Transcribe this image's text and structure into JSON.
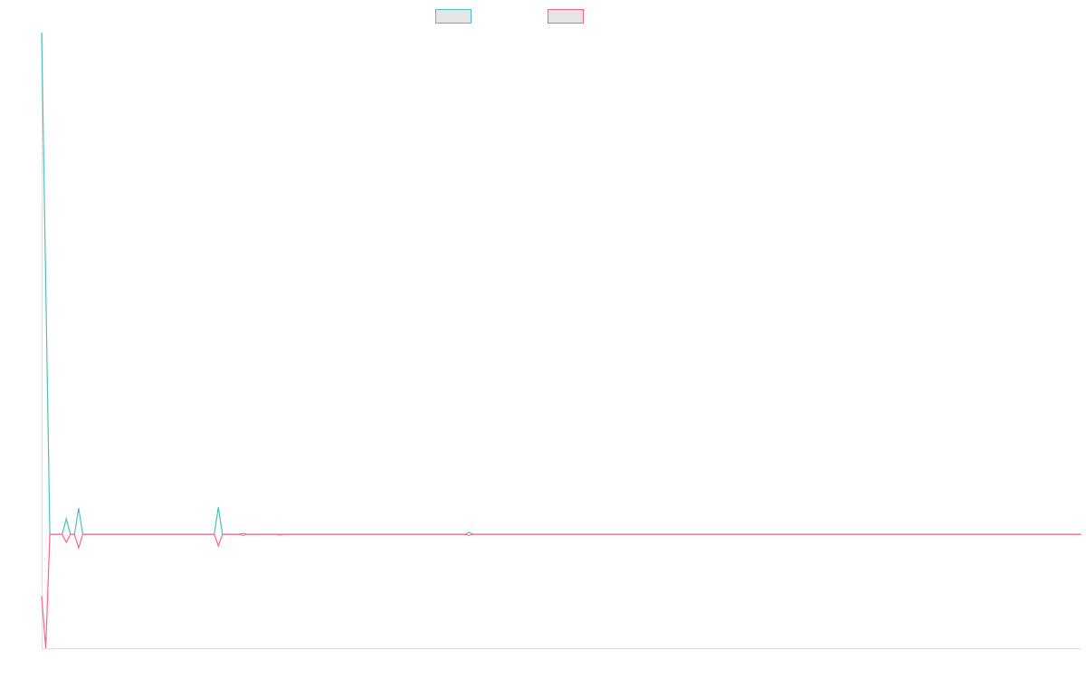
{
  "chart_data": {
    "type": "line",
    "title": "",
    "xlabel": "",
    "ylabel": "",
    "ylim": [
      -22.7,
      100
    ],
    "grid": false,
    "legend": "top-center",
    "series": [
      {
        "color": "#4bc0c0",
        "legend_fill": "#e5e5e5",
        "values": [
          100,
          50,
          0,
          0,
          0,
          0,
          3.1,
          0,
          0,
          5.2,
          0,
          0,
          0,
          0,
          0,
          0,
          0,
          0,
          0,
          0,
          0,
          0,
          0,
          0,
          0,
          0,
          0,
          0,
          0,
          0,
          0,
          0,
          0,
          0,
          0,
          0,
          0,
          0,
          0,
          0,
          0,
          0,
          0,
          5.4,
          0,
          0,
          0,
          0,
          0,
          0.2,
          0,
          0,
          0,
          0,
          0,
          0,
          0,
          0,
          0,
          0,
          0,
          0,
          0,
          0,
          0,
          0,
          0,
          0,
          0,
          0,
          0,
          0,
          0,
          0,
          0,
          0,
          0,
          0,
          0,
          0,
          0,
          0,
          0,
          0,
          0,
          0,
          0,
          0,
          0,
          0,
          0,
          0,
          0,
          0,
          0,
          0,
          0,
          0,
          0,
          0,
          0,
          0,
          0,
          0,
          0.4,
          0,
          0,
          0,
          0,
          0,
          0,
          0,
          0,
          0,
          0,
          0,
          0,
          0,
          0,
          0,
          0,
          0,
          0,
          0,
          0,
          0,
          0,
          0,
          0,
          0,
          0,
          0,
          0,
          0,
          0,
          0,
          0,
          0,
          0,
          0,
          0,
          0,
          0,
          0,
          0,
          0,
          0,
          0,
          0,
          0,
          0,
          0,
          0,
          0,
          0,
          0,
          0,
          0,
          0,
          0,
          0,
          0,
          0,
          0,
          0,
          0,
          0,
          0,
          0,
          0,
          0,
          0,
          0,
          0,
          0,
          0,
          0,
          0,
          0,
          0,
          0,
          0,
          0,
          0,
          0,
          0,
          0,
          0,
          0,
          0,
          0,
          0,
          0,
          0,
          0,
          0,
          0,
          0,
          0,
          0,
          0,
          0,
          0,
          0,
          0,
          0,
          0,
          0,
          0,
          0,
          0,
          0,
          0,
          0,
          0,
          0,
          0,
          0,
          0,
          0,
          0,
          0,
          0,
          0,
          0,
          0,
          0,
          0,
          0,
          0,
          0,
          0,
          0,
          0,
          0,
          0,
          0,
          0,
          0,
          0,
          0,
          0,
          0,
          0,
          0,
          0,
          0,
          0,
          0,
          0,
          0,
          0,
          0,
          0
        ]
      },
      {
        "color": "#ff6384",
        "legend_fill": "#e5e5e5",
        "values": [
          -12.3,
          -22.7,
          0,
          0,
          0,
          0,
          -1.6,
          0,
          0,
          -2.7,
          0,
          0,
          0,
          0,
          0,
          0,
          0,
          0,
          0,
          0,
          0,
          0,
          0,
          0,
          0,
          0,
          0,
          0,
          0,
          0,
          0,
          0,
          0,
          0,
          0,
          0,
          0,
          0,
          0,
          0,
          0,
          0,
          0,
          -2.3,
          0,
          0,
          0,
          0,
          0,
          -0.2,
          0,
          0,
          0,
          0,
          0,
          0,
          0,
          0,
          -0.1,
          0,
          0,
          0,
          0,
          0,
          0,
          0,
          0,
          0,
          0,
          0,
          0,
          0,
          0,
          0,
          0,
          0,
          0,
          0,
          0,
          0,
          0,
          0,
          0,
          0,
          0,
          0,
          0,
          0,
          0,
          0,
          0,
          0,
          0,
          0,
          0,
          0,
          0,
          0,
          0,
          0,
          0,
          0,
          0,
          0,
          -0.2,
          0,
          0,
          0,
          0,
          0,
          0,
          0,
          0,
          0,
          0,
          0,
          0,
          0,
          0,
          0,
          0,
          0,
          0,
          0,
          0,
          0,
          0,
          0,
          0,
          0,
          0,
          0,
          0,
          0,
          0,
          0,
          0,
          0,
          0,
          0,
          0,
          0,
          0,
          0,
          0,
          0,
          0,
          0,
          0,
          0,
          0,
          0,
          0,
          0,
          0,
          0,
          0,
          0,
          0,
          0,
          0,
          0,
          0,
          0,
          0,
          0,
          0,
          0,
          0,
          0,
          0,
          0,
          0,
          0,
          0,
          0,
          0,
          0,
          0,
          0,
          0,
          0,
          0,
          0,
          0,
          0,
          0,
          0,
          0,
          0,
          0,
          0,
          0,
          0,
          0,
          0,
          0,
          0,
          0,
          0,
          0,
          0,
          0,
          0,
          0,
          0,
          0,
          0,
          0,
          0,
          0,
          0,
          0,
          0,
          0,
          0,
          0,
          0,
          0,
          0,
          0,
          0,
          0,
          0,
          0,
          0,
          0,
          0,
          0,
          0,
          0,
          0,
          0,
          0,
          0,
          0,
          0,
          0,
          0,
          0,
          0,
          0,
          0,
          0,
          0,
          0,
          0,
          0,
          0,
          0,
          0,
          0,
          0,
          0
        ]
      }
    ]
  }
}
